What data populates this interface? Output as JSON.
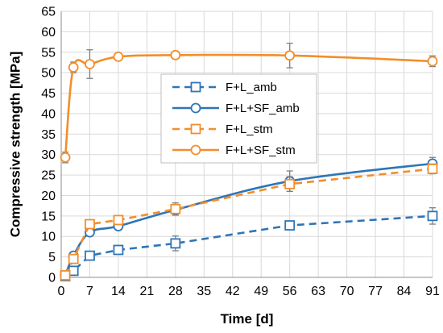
{
  "chart_data": {
    "type": "line",
    "title": "",
    "xlabel": "Time [d]",
    "ylabel": "Compressive strength [MPa]",
    "xlim": [
      0,
      91
    ],
    "ylim": [
      0,
      65
    ],
    "xticks": [
      0,
      7,
      14,
      21,
      28,
      35,
      42,
      49,
      56,
      63,
      70,
      77,
      84,
      91
    ],
    "yticks": [
      0,
      5,
      10,
      15,
      20,
      25,
      30,
      35,
      40,
      45,
      50,
      55,
      60,
      65
    ],
    "grid": true,
    "legend_position": "center-right",
    "series": [
      {
        "name": "F+L_amb",
        "color": "#2E75B6",
        "line_style": "dashed",
        "marker": "square",
        "smooth": false,
        "x": [
          1,
          3,
          7,
          14,
          28,
          56,
          91
        ],
        "y": [
          0.3,
          1.6,
          5.3,
          6.7,
          8.3,
          12.7,
          15.0
        ],
        "err": [
          0.2,
          0.3,
          0.5,
          0.5,
          1.8,
          0.8,
          2.0
        ]
      },
      {
        "name": "F+L+SF_amb",
        "color": "#2E75B6",
        "line_style": "solid",
        "marker": "circle",
        "smooth": true,
        "x": [
          1,
          3,
          7,
          14,
          28,
          56,
          91
        ],
        "y": [
          0.5,
          5.3,
          11.0,
          12.5,
          16.5,
          23.5,
          27.8
        ],
        "err": [
          0.3,
          0.6,
          0.7,
          0.8,
          1.2,
          2.5,
          1.5
        ]
      },
      {
        "name": "F+L_stm",
        "color": "#F28E2B",
        "line_style": "dashed",
        "marker": "square",
        "smooth": false,
        "x": [
          1,
          3,
          7,
          14,
          28,
          56,
          91
        ],
        "y": [
          0.5,
          4.5,
          13.0,
          14.0,
          16.7,
          22.8,
          26.5
        ],
        "err": [
          0.3,
          0.6,
          0.8,
          0.8,
          1.5,
          1.8,
          1.2
        ]
      },
      {
        "name": "F+L+SF_stm",
        "color": "#F28E2B",
        "line_style": "solid",
        "marker": "circle",
        "smooth": true,
        "x": [
          1,
          3,
          7,
          14,
          28,
          56,
          91
        ],
        "y": [
          29.3,
          51.3,
          52.1,
          53.9,
          54.3,
          54.2,
          52.8
        ],
        "err": [
          1.3,
          1.3,
          3.5,
          0.5,
          0.5,
          3.0,
          1.3
        ]
      }
    ]
  }
}
